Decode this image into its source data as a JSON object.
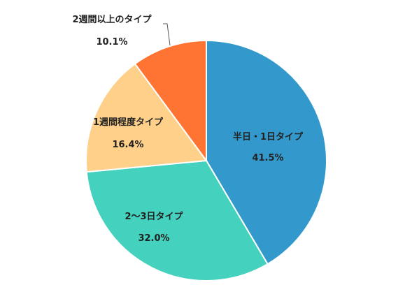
{
  "chart_data": {
    "type": "pie",
    "title": "",
    "start_angle": "12 o'clock",
    "direction": "clockwise",
    "slices": [
      {
        "label": "半日・1日タイプ",
        "value": 41.5,
        "value_label": "41.5%",
        "color": "#3399CC"
      },
      {
        "label": "2～3日タイプ",
        "value": 32.0,
        "value_label": "32.0%",
        "color": "#44D1BD"
      },
      {
        "label": "1週間程度タイプ",
        "value": 16.4,
        "value_label": "16.4%",
        "color": "#FFD08A"
      },
      {
        "label": "2週間以上のタイプ",
        "value": 10.1,
        "value_label": "10.1%",
        "color": "#FF7433"
      }
    ]
  }
}
